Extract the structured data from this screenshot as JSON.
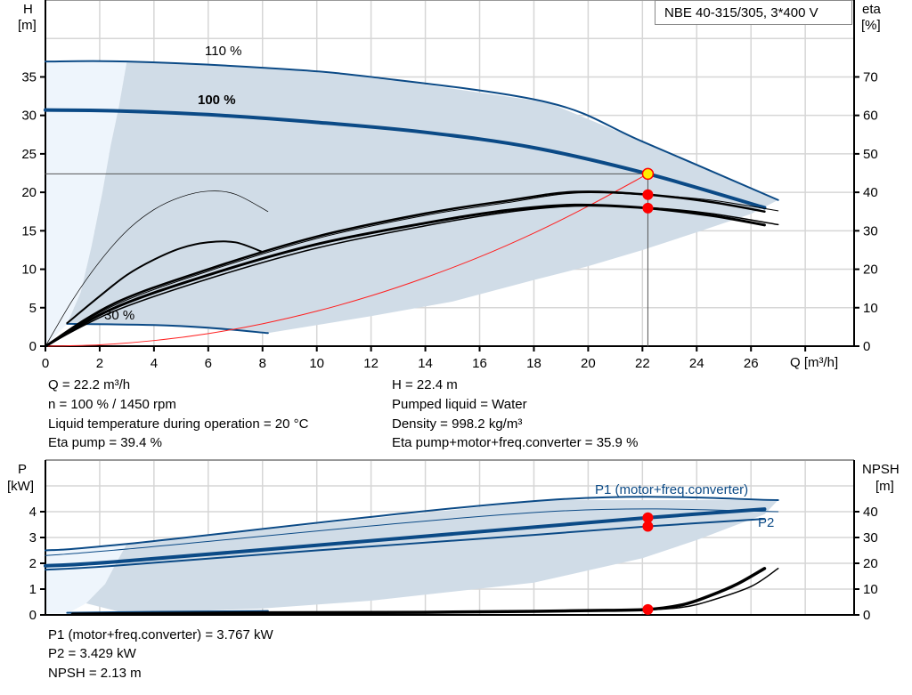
{
  "title_box": "NBE 40-315/305, 3*400 V",
  "top_info": {
    "left": [
      "Q = 22.2 m³/h",
      "n = 100 % / 1450 rpm",
      "Liquid temperature during operation = 20 °C",
      "Eta pump = 39.4 %"
    ],
    "right": [
      "H = 22.4 m",
      "Pumped liquid = Water",
      "Density = 998.2 kg/m³",
      "Eta pump+motor+freq.converter = 35.9 %"
    ]
  },
  "bottom_info": [
    "P1 (motor+freq.converter) = 3.767 kW",
    "P2 = 3.429 kW",
    "NPSH = 2.13 m"
  ],
  "colors": {
    "curve_blue": "#0b4a86",
    "shade": "#d0dce7",
    "light_shade": "#eef5fc",
    "grid": "#d6d6d6",
    "system_curve": "#ff2020",
    "point_red": "#ff0000",
    "point_yellow": "#ffee00"
  },
  "chart_data": [
    {
      "type": "line",
      "xlabel": "Q [m³/h]",
      "ylabel_left": "H",
      "ylabel_left_unit": "[m]",
      "ylabel_right": "eta",
      "ylabel_right_unit": "[%]",
      "xlim": [
        0,
        29.8
      ],
      "ylim_left": [
        0,
        45
      ],
      "ylim_right": [
        0,
        90
      ],
      "xticks": [
        0,
        2,
        4,
        6,
        8,
        10,
        12,
        14,
        16,
        18,
        20,
        22,
        24,
        26
      ],
      "yticks_left": [
        0,
        5,
        10,
        15,
        20,
        25,
        30,
        35
      ],
      "yticks_right": [
        0,
        10,
        20,
        30,
        40,
        50,
        60,
        70
      ],
      "grid": true,
      "curve_labels": [
        "110 %",
        "100 %",
        "30 %"
      ],
      "shaded_region": [
        [
          3,
          37
        ],
        [
          8,
          36.2
        ],
        [
          12,
          35
        ],
        [
          18.5,
          31.7
        ],
        [
          22,
          26.6
        ],
        [
          27,
          19
        ],
        [
          26,
          17.2
        ],
        [
          24,
          14.8
        ],
        [
          22,
          12.5
        ],
        [
          20,
          10.4
        ],
        [
          18,
          8.6
        ],
        [
          15,
          5.8
        ],
        [
          12,
          3.9
        ],
        [
          8.2,
          1.7
        ],
        [
          4,
          2.7
        ],
        [
          0.8,
          2.9
        ],
        [
          1.3,
          7
        ],
        [
          1.7,
          13
        ],
        [
          2.1,
          20
        ],
        [
          2.4,
          26
        ],
        [
          2.7,
          31
        ],
        [
          3,
          37
        ]
      ],
      "light_region": [
        [
          0,
          37
        ],
        [
          3,
          37
        ],
        [
          2.7,
          31
        ],
        [
          2.4,
          26
        ],
        [
          2.1,
          20
        ],
        [
          1.7,
          13
        ],
        [
          1.3,
          7
        ],
        [
          0.8,
          2.9
        ],
        [
          0,
          0
        ]
      ],
      "series": [
        {
          "axis": "left",
          "style": "blue",
          "width": 2,
          "points": [
            [
              0,
              37
            ],
            [
              3,
              37
            ],
            [
              8,
              36.2
            ],
            [
              12,
              35
            ],
            [
              18.5,
              31.7
            ],
            [
              22,
              26.6
            ],
            [
              27,
              19
            ]
          ]
        },
        {
          "axis": "left",
          "style": "blue",
          "width": 4,
          "points": [
            [
              0,
              30.7
            ],
            [
              2.5,
              30.6
            ],
            [
              6,
              30.1
            ],
            [
              10,
              29.1
            ],
            [
              14,
              27.8
            ],
            [
              18,
              25.8
            ],
            [
              22.2,
              22.4
            ],
            [
              26.5,
              18
            ]
          ]
        },
        {
          "axis": "left",
          "style": "blue",
          "width": 2,
          "points": [
            [
              0.8,
              2.9
            ],
            [
              4,
              2.75
            ],
            [
              6,
              2.4
            ],
            [
              8.2,
              1.7
            ]
          ]
        },
        {
          "axis": "left",
          "style": "red",
          "width": 1,
          "points": [
            [
              0,
              0
            ],
            [
              2,
              0.18
            ],
            [
              4,
              0.73
            ],
            [
              6,
              1.64
            ],
            [
              8,
              2.91
            ],
            [
              10,
              4.55
            ],
            [
              12,
              6.55
            ],
            [
              14,
              8.91
            ],
            [
              16,
              11.6
            ],
            [
              18,
              14.7
            ],
            [
              20,
              18.2
            ],
            [
              22.2,
              22.4
            ]
          ]
        },
        {
          "axis": "left",
          "style": "gray",
          "width": 1,
          "points": [
            [
              0,
              22.4
            ],
            [
              22.2,
              22.4
            ]
          ]
        },
        {
          "axis": "left",
          "style": "gray",
          "width": 1,
          "points": [
            [
              22.2,
              22.4
            ],
            [
              22.2,
              0
            ]
          ]
        },
        {
          "axis": "right",
          "style": "black",
          "width": 0.7,
          "points": [
            [
              0,
              0
            ],
            [
              1,
              12
            ],
            [
              2,
              22
            ],
            [
              3,
              30
            ],
            [
              4,
              35.5
            ],
            [
              5,
              38.8
            ],
            [
              6,
              40.3
            ],
            [
              7,
              39.5
            ],
            [
              8.2,
              35
            ]
          ]
        },
        {
          "axis": "right",
          "style": "black",
          "width": 2,
          "points": [
            [
              0.8,
              6
            ],
            [
              2,
              13
            ],
            [
              3,
              18.5
            ],
            [
              4,
              22.5
            ],
            [
              5,
              25.5
            ],
            [
              6,
              27
            ],
            [
              7,
              27
            ],
            [
              8,
              24.5
            ]
          ]
        },
        {
          "axis": "right",
          "style": "black",
          "width": 2.5,
          "points": [
            [
              0,
              0
            ],
            [
              2.5,
              11
            ],
            [
              6,
              20
            ],
            [
              10,
              28.5
            ],
            [
              14,
              34.5
            ],
            [
              17,
              37.8
            ],
            [
              19.5,
              40.1
            ],
            [
              22.2,
              39.4
            ],
            [
              24.5,
              37.5
            ],
            [
              26.5,
              35
            ]
          ]
        },
        {
          "axis": "right",
          "style": "black",
          "width": 1,
          "points": [
            [
              0,
              0
            ],
            [
              2.5,
              10.5
            ],
            [
              6,
              19.5
            ],
            [
              10,
              28
            ],
            [
              14,
              34
            ],
            [
              17,
              37.3
            ],
            [
              19.5,
              39.8
            ],
            [
              22.2,
              39.3
            ],
            [
              24.5,
              38
            ],
            [
              27,
              35.2
            ]
          ]
        },
        {
          "axis": "right",
          "style": "black",
          "width": 3,
          "points": [
            [
              0,
              0
            ],
            [
              2.5,
              9.8
            ],
            [
              6,
              18.5
            ],
            [
              10,
              26.5
            ],
            [
              14,
              32
            ],
            [
              17,
              35.3
            ],
            [
              19.5,
              36.7
            ],
            [
              22.2,
              35.9
            ],
            [
              24.5,
              34
            ],
            [
              26.5,
              31.5
            ]
          ]
        },
        {
          "axis": "right",
          "style": "black",
          "width": 1.5,
          "points": [
            [
              0,
              0
            ],
            [
              2.5,
              9
            ],
            [
              6,
              17.5
            ],
            [
              10,
              25.5
            ],
            [
              14,
              31.3
            ],
            [
              17,
              34.8
            ],
            [
              19.5,
              36.4
            ],
            [
              22.2,
              36
            ],
            [
              24.5,
              34.5
            ],
            [
              27,
              31.6
            ]
          ]
        }
      ],
      "points": [
        {
          "label": "H",
          "x": 22.2,
          "y": 22.4,
          "axis": "left",
          "color": "yellow"
        },
        {
          "label": "Eta pump",
          "x": 22.2,
          "y": 39.4,
          "axis": "right",
          "color": "red"
        },
        {
          "label": "Eta pump+motor+freq.converter",
          "x": 22.2,
          "y": 35.9,
          "axis": "right",
          "color": "red"
        }
      ]
    },
    {
      "type": "line",
      "ylabel_left": "P",
      "ylabel_left_unit": "[kW]",
      "ylabel_right": "NPSH",
      "ylabel_right_unit": "[m]",
      "xlim": [
        0,
        29.8
      ],
      "ylim_left": [
        0,
        6
      ],
      "ylim_right": [
        0,
        60
      ],
      "yticks_left": [
        0,
        1,
        2,
        3,
        4
      ],
      "yticks_right": [
        0,
        10,
        20,
        30,
        40
      ],
      "grid": true,
      "series_labels": [
        "P1 (motor+freq.converter)",
        "P2"
      ],
      "shaded_region": [
        [
          3,
          2.75
        ],
        [
          18.5,
          4.45
        ],
        [
          27,
          4.45
        ],
        [
          26.5,
          3.9
        ],
        [
          24,
          2.9
        ],
        [
          22,
          2.2
        ],
        [
          18,
          1.25
        ],
        [
          12,
          0.55
        ],
        [
          8,
          0.25
        ],
        [
          3,
          0.05
        ],
        [
          1.5,
          0.45
        ],
        [
          2.2,
          1.2
        ],
        [
          2.6,
          2
        ],
        [
          3,
          2.75
        ]
      ],
      "light_region": [
        [
          0,
          2.5
        ],
        [
          3,
          2.75
        ],
        [
          2.6,
          2
        ],
        [
          2.2,
          1.2
        ],
        [
          1.5,
          0.45
        ],
        [
          0.8,
          0.05
        ],
        [
          0,
          0.05
        ]
      ],
      "series": [
        {
          "axis": "left",
          "style": "blue",
          "width": 2,
          "points": [
            [
              0,
              2.5
            ],
            [
              3,
              2.75
            ],
            [
              18.5,
              4.45
            ],
            [
              27,
              4.45
            ]
          ]
        },
        {
          "axis": "left",
          "style": "blue",
          "width": 1,
          "points": [
            [
              0,
              2.3
            ],
            [
              3,
              2.55
            ],
            [
              18.5,
              4.0
            ],
            [
              27,
              4.0
            ]
          ]
        },
        {
          "axis": "left",
          "style": "blue",
          "width": 4,
          "points": [
            [
              0,
              1.9
            ],
            [
              2.5,
              2.05
            ],
            [
              10,
              2.7
            ],
            [
              18,
              3.4
            ],
            [
              22.2,
              3.767
            ],
            [
              26.5,
              4.1
            ]
          ]
        },
        {
          "axis": "left",
          "style": "blue",
          "width": 2,
          "points": [
            [
              0,
              1.75
            ],
            [
              2.5,
              1.9
            ],
            [
              10,
              2.5
            ],
            [
              18,
              3.1
            ],
            [
              22.2,
              3.429
            ],
            [
              26.5,
              3.72
            ]
          ]
        },
        {
          "axis": "left",
          "style": "blue",
          "width": 2,
          "points": [
            [
              0.8,
              0.08
            ],
            [
              4,
              0.12
            ],
            [
              8.2,
              0.15
            ]
          ]
        },
        {
          "axis": "right",
          "style": "black",
          "width": 3.5,
          "points": [
            [
              1,
              0.3
            ],
            [
              8,
              0.8
            ],
            [
              14,
              1.0
            ],
            [
              18,
              1.4
            ],
            [
              20,
              1.7
            ],
            [
              22.2,
              2.13
            ],
            [
              23.5,
              4
            ],
            [
              24.5,
              7.5
            ],
            [
              25.5,
              12
            ],
            [
              26.5,
              18
            ]
          ]
        },
        {
          "axis": "right",
          "style": "black",
          "width": 1.5,
          "points": [
            [
              1,
              0.2
            ],
            [
              8,
              0.6
            ],
            [
              14,
              0.9
            ],
            [
              18,
              1.3
            ],
            [
              20,
              1.6
            ],
            [
              22.2,
              2.0
            ],
            [
              23.5,
              3
            ],
            [
              24.5,
              5.5
            ],
            [
              26,
              11
            ],
            [
              27,
              18
            ]
          ]
        }
      ],
      "points": [
        {
          "label": "P1 (motor+freq.converter)",
          "x": 22.2,
          "y": 3.767,
          "axis": "left",
          "color": "red"
        },
        {
          "label": "P2",
          "x": 22.2,
          "y": 3.429,
          "axis": "left",
          "color": "red"
        },
        {
          "label": "NPSH",
          "x": 22.2,
          "y": 2.13,
          "axis": "right",
          "color": "red"
        }
      ]
    }
  ]
}
